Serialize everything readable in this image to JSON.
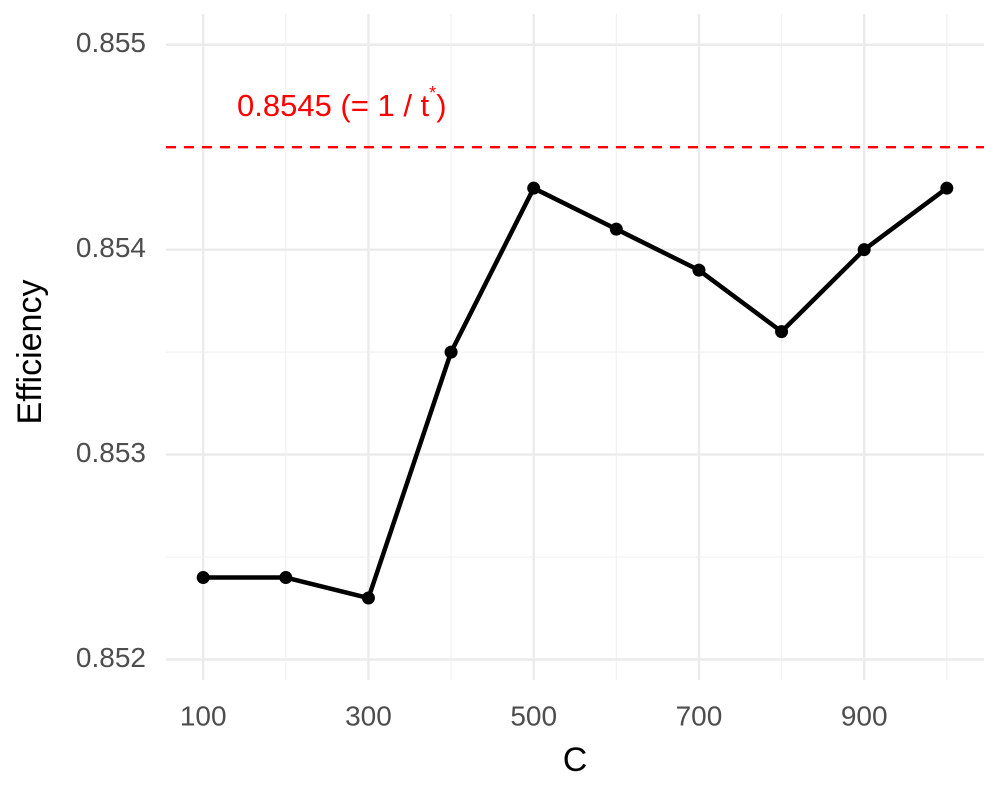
{
  "chart_data": {
    "type": "line",
    "x_label": "C",
    "y_label": "Efficiency",
    "x": [
      100,
      200,
      300,
      400,
      500,
      600,
      700,
      800,
      900,
      1000
    ],
    "values": [
      0.8524,
      0.8524,
      0.8523,
      0.8535,
      0.8543,
      0.8541,
      0.8539,
      0.8536,
      0.854,
      0.8543
    ],
    "color": "#000000",
    "xlim": [
      55,
      1045
    ],
    "ylim": [
      0.8519,
      0.85515
    ],
    "xticks": [
      100,
      300,
      500,
      700,
      900
    ],
    "yticks": [
      0.852,
      0.853,
      0.854,
      0.855
    ],
    "xminor": [
      200,
      400,
      600,
      800,
      1000
    ],
    "yminor": [
      0.8525,
      0.8535,
      0.8545
    ],
    "grid": true,
    "reference_line": {
      "value": 0.8545,
      "color": "#ff0000",
      "dashed": true
    },
    "annotation": {
      "text": "0.8545 (= 1 / t",
      "superscript": "*",
      "text_after": ")",
      "color": "#ff0000"
    }
  }
}
